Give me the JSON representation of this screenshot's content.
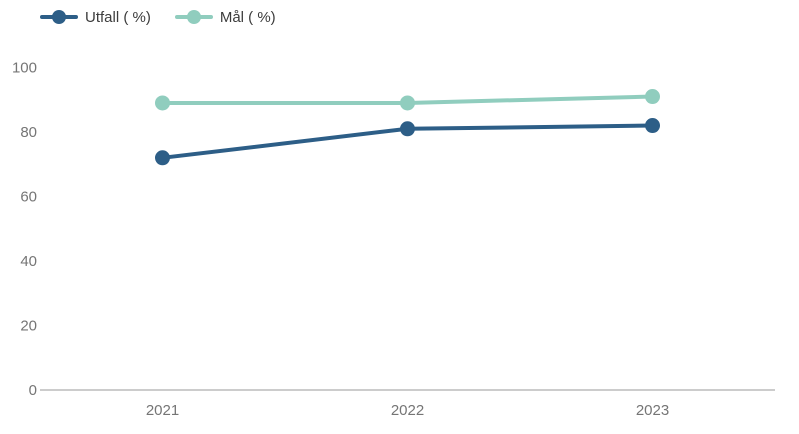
{
  "chart_data": {
    "type": "line",
    "categories": [
      "2021",
      "2022",
      "2023"
    ],
    "series": [
      {
        "name": "Utfall ( %)",
        "values": [
          72,
          81,
          82
        ],
        "color": "#2d5e87"
      },
      {
        "name": "Mål ( %)",
        "values": [
          89,
          89,
          91
        ],
        "color": "#90cdbe"
      }
    ],
    "title": "",
    "xlabel": "",
    "ylabel": "",
    "ylim": [
      0,
      100
    ],
    "yticks": [
      0,
      20,
      40,
      60,
      80,
      100
    ],
    "grid": false,
    "legend_position": "top-left",
    "axis_color": "#cccccc",
    "tick_label_color": "#757575",
    "legend_text_color": "#3c3c3c",
    "marker_radius": 7.5,
    "line_width": 4
  }
}
